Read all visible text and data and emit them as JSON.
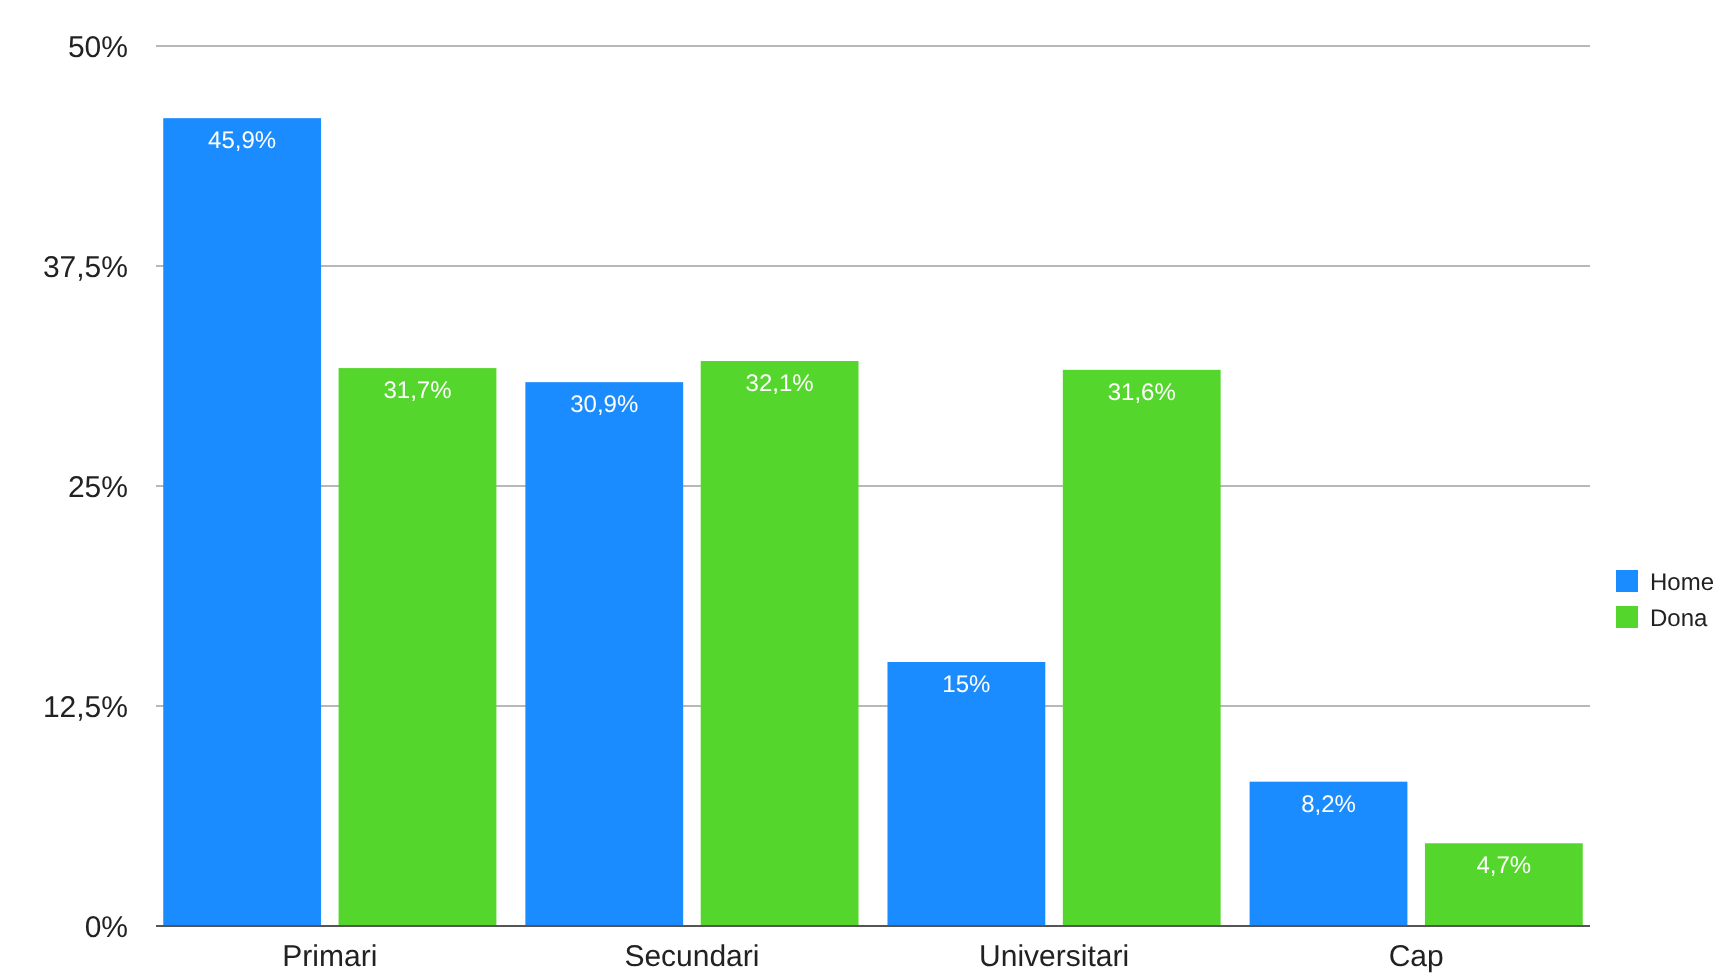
{
  "chart_data": {
    "type": "bar",
    "categories": [
      "Primari",
      "Secundari",
      "Universitari",
      "Cap"
    ],
    "series": [
      {
        "name": "Home",
        "color": "#1a8cff",
        "values": [
          45.9,
          30.9,
          15,
          8.2
        ],
        "value_labels": [
          "45,9%",
          "30,9%",
          "15%",
          "8,2%"
        ]
      },
      {
        "name": "Dona",
        "color": "#55d62c",
        "values": [
          31.7,
          32.1,
          31.6,
          4.7
        ],
        "value_labels": [
          "31,7%",
          "32,1%",
          "31,6%",
          "4,7%"
        ]
      }
    ],
    "ylim": [
      0,
      50
    ],
    "yticks": [
      {
        "value": 0,
        "label": "0%"
      },
      {
        "value": 12.5,
        "label": "12,5%"
      },
      {
        "value": 25,
        "label": "25%"
      },
      {
        "value": 37.5,
        "label": "37,5%"
      },
      {
        "value": 50,
        "label": "50%"
      }
    ],
    "grid": "y",
    "legend": "right"
  }
}
